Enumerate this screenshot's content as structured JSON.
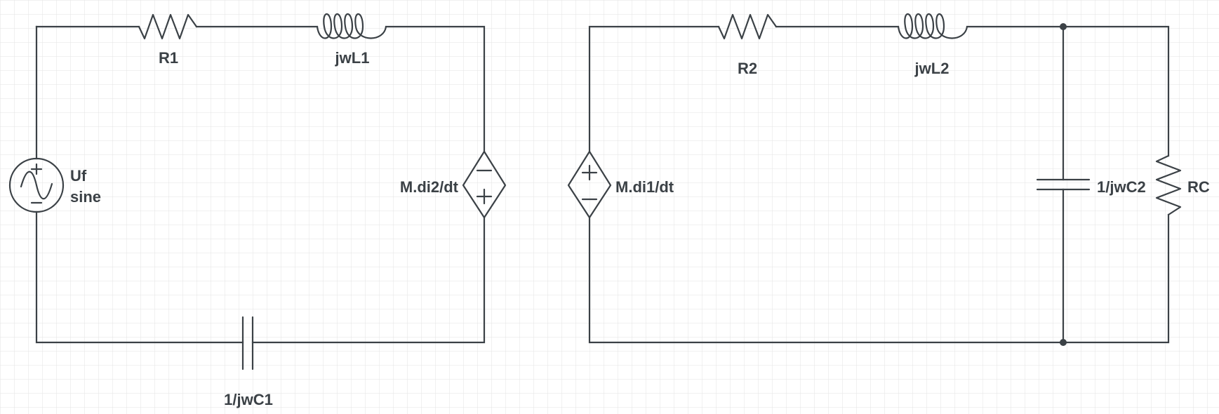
{
  "circuit_left": {
    "source_label": "Uf",
    "source_type": "sine",
    "resistor": "R1",
    "inductor": "jwL1",
    "capacitor": "1/jwC1",
    "dependent_source": "M.di2/dt"
  },
  "circuit_right": {
    "dependent_source": "M.di1/dt",
    "resistor": "R2",
    "inductor": "jwL2",
    "capacitor": "1/jwC2",
    "load_resistor": "RC"
  },
  "colors": {
    "line": "#3b4146",
    "grid": "#e3e3e3",
    "background": "#ffffff"
  }
}
